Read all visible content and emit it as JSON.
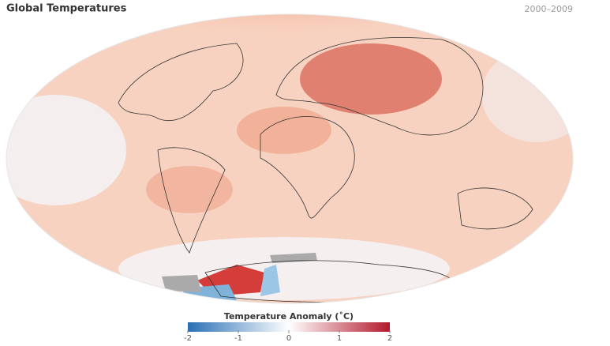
{
  "header": {
    "title": "Global Temperatures",
    "period": "2000–2009"
  },
  "legend": {
    "title": "Temperature Anomaly (˚C)",
    "range": [
      -2,
      2
    ],
    "ticks": [
      -2,
      -1,
      0,
      1,
      2
    ],
    "colors": [
      "#2a6fb5",
      "#ffffff",
      "#b3182b"
    ]
  }
}
